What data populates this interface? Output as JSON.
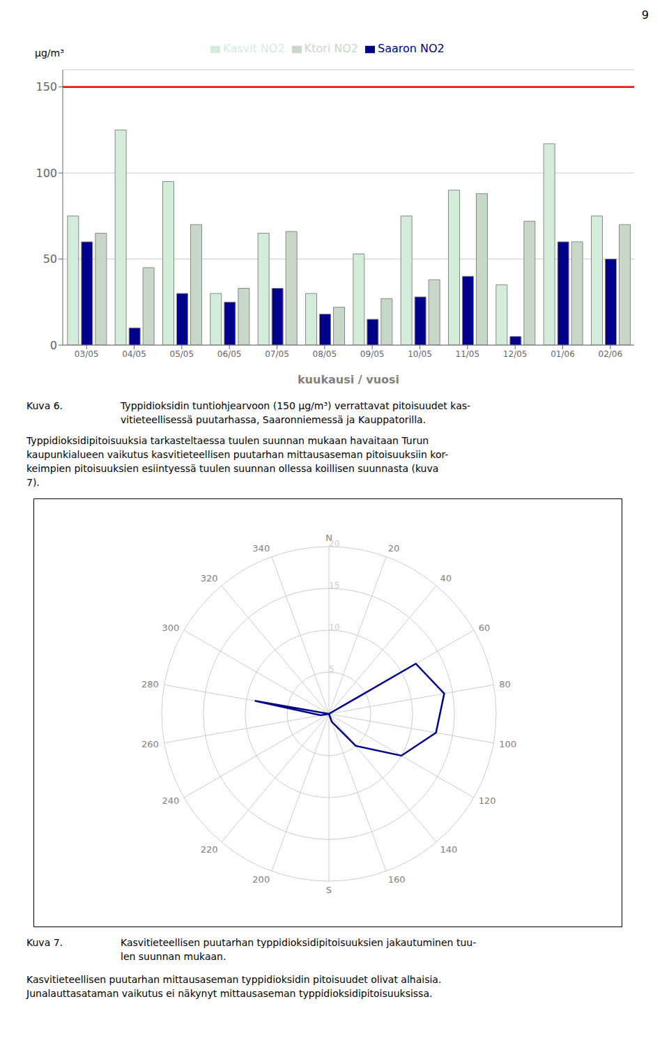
{
  "chart_data": [
    {
      "type": "bar",
      "page_number": "9",
      "categories": [
        "03/05",
        "04/05",
        "05/05",
        "06/05",
        "07/05",
        "08/05",
        "09/05",
        "10/05",
        "11/05",
        "12/05",
        "01/06",
        "02/06"
      ],
      "series": [
        {
          "name": "Kasvit NO2",
          "color": "#d4edda",
          "values": [
            75,
            125,
            95,
            30,
            65,
            30,
            53,
            75,
            90,
            35,
            117,
            75
          ]
        },
        {
          "name": "Saaron NO2",
          "color": "#00008B",
          "values": [
            60,
            10,
            30,
            25,
            33,
            18,
            15,
            28,
            40,
            5,
            60,
            50
          ]
        },
        {
          "name": "Ktori NO2",
          "color": "#c8d8c8",
          "values": [
            65,
            45,
            70,
            33,
            66,
            22,
            27,
            38,
            88,
            72,
            60,
            70
          ]
        }
      ],
      "xlabel": "kuukausi / vuosi",
      "ylabel": "μg/m³",
      "ylim": [
        0,
        160
      ],
      "yticks": [
        0,
        50,
        100,
        150
      ],
      "grid": true,
      "legend": "top",
      "reference_line": {
        "value": 150,
        "color": "#FF0000"
      },
      "caption_label": "Kuva 6.",
      "caption": [
        "Typpidioksidin tuntiohjearvoon (150 μg/m³) verrattavat pitoisuudet kas-",
        "vitieteellisessä puutarhassa, Saaronniemessä ja Kauppatorilla."
      ],
      "paragraph": [
        "Typpidioksidipitoisuuksia tarkasteltaessa tuulen suunnan mukaan havaitaan Turun",
        "kaupunkialueen vaikutus kasvitieteellisen puutarhan mittausaseman pitoisuuksiin kor-",
        "keimpien pitoisuuksien esiintyessä tuulen suunnan ollessa koillisen suunnasta (kuva",
        "7)."
      ]
    },
    {
      "type": "radar",
      "categories": [
        "N",
        "20",
        "40",
        "60",
        "80",
        "100",
        "120",
        "140",
        "160",
        "S",
        "200",
        "220",
        "240",
        "260",
        "280",
        "300",
        "320",
        "340"
      ],
      "values": [
        0,
        0,
        0,
        12,
        14,
        13,
        10,
        5,
        1,
        0,
        0,
        0,
        0,
        1,
        9,
        0,
        0,
        0
      ],
      "color": "#00008B",
      "ylim": [
        0,
        20
      ],
      "yticks": [
        5,
        10,
        15,
        20
      ],
      "grid": true,
      "caption_label": "Kuva 7.",
      "caption": [
        "Kasvitieteellisen puutarhan typpidioksidipitoisuuksien jakautuminen tuu-",
        "len suunnan mukaan."
      ],
      "paragraph": [
        "Kasvitieteellisen puutarhan mittausaseman typpidioksidin pitoisuudet olivat alhaisia.",
        "Junalauttasataman vaikutus ei näkynyt mittausaseman typpidioksidipitoisuuksissa."
      ]
    }
  ]
}
